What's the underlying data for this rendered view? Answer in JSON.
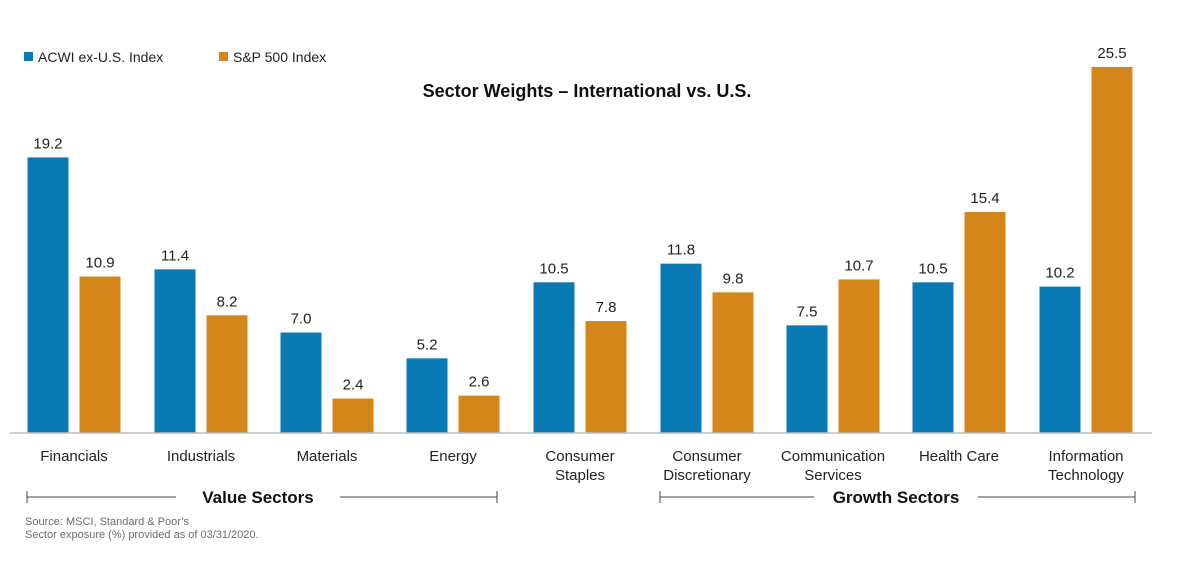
{
  "chart_data": {
    "type": "bar",
    "title": "Sector Weights – International vs. U.S.",
    "categories": [
      [
        "Financials"
      ],
      [
        "Industrials"
      ],
      [
        "Materials"
      ],
      [
        "Energy"
      ],
      [
        "Consumer",
        "Staples"
      ],
      [
        "Consumer",
        "Discretionary"
      ],
      [
        "Communication",
        "Services"
      ],
      [
        "Health Care"
      ],
      [
        "Information",
        "Technology"
      ]
    ],
    "series": [
      {
        "name": "ACWI ex-U.S. Index",
        "color": "#0a7ab5",
        "values": [
          19.2,
          11.4,
          7.0,
          5.2,
          10.5,
          11.8,
          7.5,
          10.5,
          10.2
        ]
      },
      {
        "name": "S&P 500 Index",
        "color": "#d4861a",
        "values": [
          10.9,
          8.2,
          2.4,
          2.6,
          7.8,
          9.8,
          10.7,
          15.4,
          25.5
        ]
      }
    ],
    "ylim": [
      0,
      25.5
    ],
    "legend_position": "top-left",
    "grid": false,
    "groups": [
      {
        "label": "Value Sectors",
        "from": 0,
        "to": 3
      },
      {
        "label": "Growth Sectors",
        "from": 5,
        "to": 8
      }
    ]
  },
  "footnote": {
    "line1": "Source: MSCI, Standard & Poor’s",
    "line2": "Sector exposure (%) provided as of 03/31/2020."
  }
}
